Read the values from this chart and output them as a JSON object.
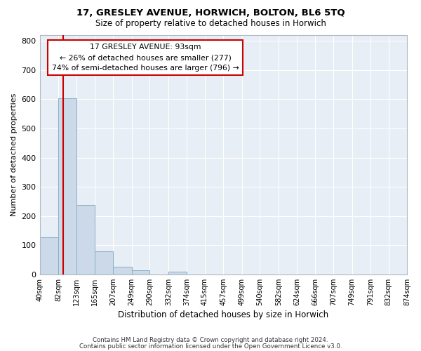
{
  "title1": "17, GRESLEY AVENUE, HORWICH, BOLTON, BL6 5TQ",
  "title2": "Size of property relative to detached houses in Horwich",
  "xlabel": "Distribution of detached houses by size in Horwich",
  "ylabel": "Number of detached properties",
  "bins": [
    "40sqm",
    "82sqm",
    "123sqm",
    "165sqm",
    "207sqm",
    "249sqm",
    "290sqm",
    "332sqm",
    "374sqm",
    "415sqm",
    "457sqm",
    "499sqm",
    "540sqm",
    "582sqm",
    "624sqm",
    "666sqm",
    "707sqm",
    "749sqm",
    "791sqm",
    "832sqm",
    "874sqm"
  ],
  "bar_values": [
    128,
    603,
    238,
    80,
    25,
    13,
    0,
    9,
    0,
    0,
    0,
    0,
    0,
    0,
    0,
    0,
    0,
    0,
    0,
    0
  ],
  "bar_color": "#ccd9e8",
  "bar_edge_color": "#8aafc8",
  "vline_x": 93,
  "vline_color": "#cc0000",
  "annotation_line1": "17 GRESLEY AVENUE: 93sqm",
  "annotation_line2": "← 26% of detached houses are smaller (277)",
  "annotation_line3": "74% of semi-detached houses are larger (796) →",
  "annotation_box_facecolor": "#ffffff",
  "annotation_box_edgecolor": "#cc0000",
  "ylim": [
    0,
    820
  ],
  "yticks": [
    0,
    100,
    200,
    300,
    400,
    500,
    600,
    700,
    800
  ],
  "bin_edges": [
    40,
    82,
    123,
    165,
    207,
    249,
    290,
    332,
    374,
    415,
    457,
    499,
    540,
    582,
    624,
    666,
    707,
    749,
    791,
    832,
    874
  ],
  "footer1": "Contains HM Land Registry data © Crown copyright and database right 2024.",
  "footer2": "Contains public sector information licensed under the Open Government Licence v3.0.",
  "plot_bg_color": "#e8eef5",
  "fig_bg_color": "#ffffff"
}
